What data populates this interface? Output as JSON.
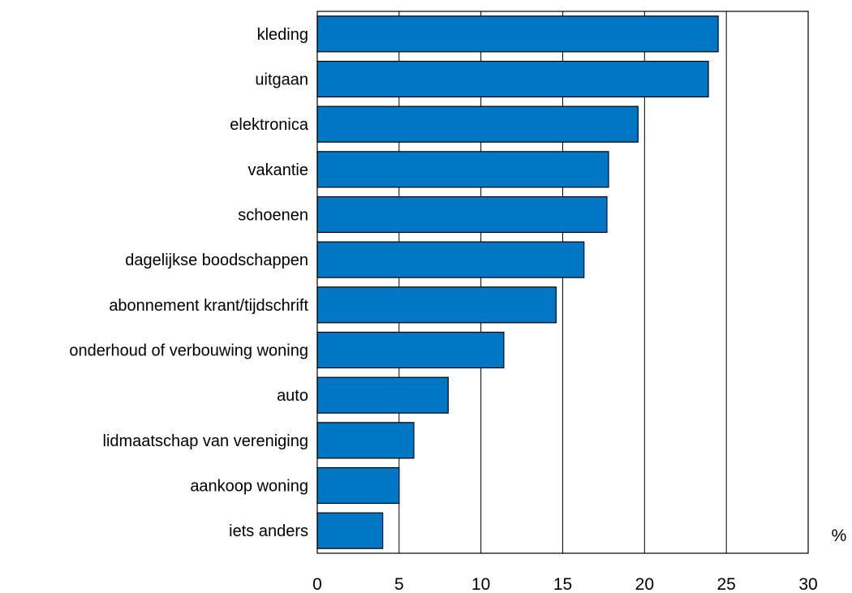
{
  "colors": {
    "bar": "#0077c4",
    "bar_stroke": "#000000",
    "grid": "#000000",
    "background": "#ffffff"
  },
  "chart_data": {
    "type": "bar",
    "orientation": "horizontal",
    "categories": [
      "kleding",
      "uitgaan",
      "elektronica",
      "vakantie",
      "schoenen",
      "dagelijkse boodschappen",
      "abonnement krant/tijdschrift",
      "onderhoud of verbouwing woning",
      "auto",
      "lidmaatschap van vereniging",
      "aankoop woning",
      "iets anders"
    ],
    "values": [
      24.5,
      23.9,
      19.6,
      17.8,
      17.7,
      16.3,
      14.6,
      11.4,
      8.0,
      5.9,
      5.0,
      4.0
    ],
    "xlim": [
      0,
      30
    ],
    "xticks": [
      "0",
      "5",
      "10",
      "15",
      "20",
      "25",
      "30"
    ],
    "unit": "%",
    "grid": "vertical",
    "legend": "none"
  }
}
